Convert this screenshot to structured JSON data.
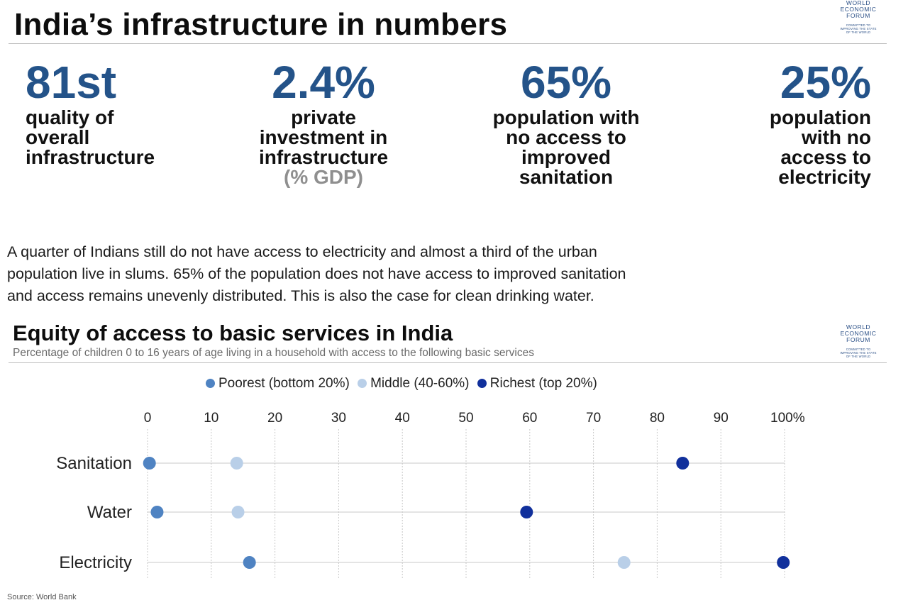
{
  "header": {
    "title": "India’s infrastructure in numbers",
    "logo_lines": [
      "WORLD",
      "ECONOMIC",
      "FORUM"
    ],
    "logo_tagline": [
      "COMMITTED TO",
      "IMPROVING THE STATE",
      "OF THE WORLD"
    ]
  },
  "stats": [
    {
      "value": "81st",
      "lines": [
        "quality of",
        "overall",
        "infrastructure"
      ],
      "sub": ""
    },
    {
      "value": "2.4%",
      "lines": [
        "private",
        "investment in",
        "infrastructure"
      ],
      "sub": "(% GDP)"
    },
    {
      "value": "65%",
      "lines": [
        "population with",
        "no access to",
        "improved",
        "sanitation"
      ],
      "sub": ""
    },
    {
      "value": "25%",
      "lines": [
        "population",
        "with no",
        "access to",
        "electricity"
      ],
      "sub": ""
    }
  ],
  "paragraph": [
    "A quarter of Indians still do not have access to electricity and almost a third of the urban",
    "population live in slums. 65% of the population does not have access to improved sanitation",
    "and access remains unevenly distributed. This is also the case for clean drinking water."
  ],
  "colors": {
    "accent": "#245389",
    "poorest": "#4f83c2",
    "middle": "#b9cfe8",
    "richest": "#11309c",
    "grid": "#c8c8c8"
  },
  "chart_data": {
    "type": "scatter",
    "title": "Equity of access to basic services in India",
    "subtitle": "Percentage of children 0 to 16 years of age living in a household with  access to the following basic services",
    "categories": [
      "Sanitation",
      "Water",
      "Electricity"
    ],
    "series": [
      {
        "name": "Poorest (bottom 20%)",
        "color": "#4f83c2",
        "values": [
          0.3,
          1.5,
          16
        ]
      },
      {
        "name": "Middle (40-60%)",
        "color": "#b9cfe8",
        "values": [
          14,
          14.2,
          74.8
        ]
      },
      {
        "name": "Richest (top 20%)",
        "color": "#11309c",
        "values": [
          84,
          59.5,
          99.8
        ]
      }
    ],
    "xlim": [
      0,
      100
    ],
    "xticks": [
      0,
      10,
      20,
      30,
      40,
      50,
      60,
      70,
      80,
      90,
      100
    ],
    "xtick_labels": [
      "0",
      "10",
      "20",
      "30",
      "40",
      "50",
      "60",
      "70",
      "80",
      "90",
      "100%"
    ],
    "grid": true,
    "legend_position": "top-center",
    "source": "Source: World Bank"
  }
}
